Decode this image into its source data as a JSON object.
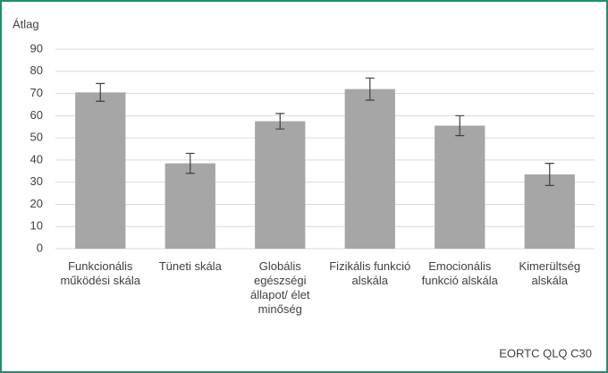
{
  "chart_data": {
    "type": "bar",
    "y_label": "Átlag",
    "x_label": "EORTC QLQ C30",
    "categories": [
      "Funkcionális működési skála",
      "Tüneti skála",
      "Globális egészségi állapot/ élet minőség",
      "Fizikális funkció alskála",
      "Emocionális funkció alskála",
      "Kimerültség alskála"
    ],
    "values": [
      70.5,
      38.5,
      57.5,
      72,
      55.5,
      33.5
    ],
    "errors": [
      4,
      4.5,
      3.5,
      5,
      4.5,
      5
    ],
    "color": "#a6a6a6",
    "ylim": [
      0,
      90
    ],
    "yticks": [
      0,
      10,
      20,
      30,
      40,
      50,
      60,
      70,
      80,
      90
    ],
    "grid": true
  }
}
